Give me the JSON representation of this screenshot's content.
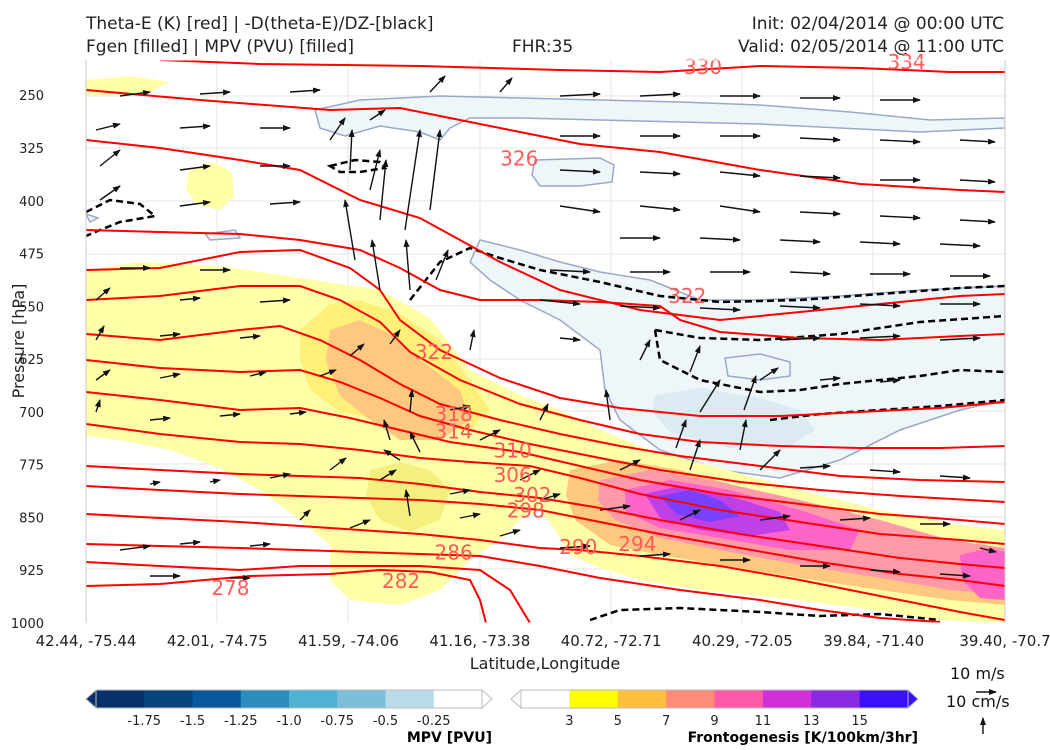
{
  "header": {
    "title_left_1": "Theta-E (K) [red] | -D(theta-E)/DZ-[black]",
    "title_left_2": "Fgen [filled] | MPV (PVU) [filled]",
    "fhr": "FHR:35",
    "init": "Init: 02/04/2014 @ 00:00 UTC",
    "valid": "Valid: 02/05/2014 @ 11:00 UTC"
  },
  "colors": {
    "theta_e": "#ff0000",
    "theta_e_label": "#ff5a5a",
    "stability": "#000000",
    "mpv_outline": "#9aa8c8"
  },
  "chart_data": {
    "type": "cross-section",
    "xlabel": "Latitude,Longitude",
    "ylabel": "Pressure [hPa]",
    "x_ticks": [
      "42.44, -75.44",
      "42.01, -74.75",
      "41.59, -74.06",
      "41.16, -73.38",
      "40.72, -72.71",
      "40.29, -72.05",
      "39.84, -71.40",
      "39.40, -70.7"
    ],
    "y_ticks": [
      250,
      325,
      400,
      475,
      550,
      625,
      700,
      775,
      850,
      925,
      1000
    ],
    "ylim": [
      1000,
      200
    ],
    "theta_e_contour_labels": [
      {
        "value": "330",
        "x": 4.7,
        "y": 210
      },
      {
        "value": "334",
        "x": 6.25,
        "y": 203
      },
      {
        "value": "326",
        "x": 3.3,
        "y": 340
      },
      {
        "value": "322",
        "x": 2.65,
        "y": 615
      },
      {
        "value": "322",
        "x": 4.58,
        "y": 535
      },
      {
        "value": "318",
        "x": 2.8,
        "y": 703
      },
      {
        "value": "314",
        "x": 2.8,
        "y": 728
      },
      {
        "value": "310",
        "x": 3.25,
        "y": 755
      },
      {
        "value": "306",
        "x": 3.25,
        "y": 790
      },
      {
        "value": "302",
        "x": 3.4,
        "y": 818
      },
      {
        "value": "298",
        "x": 3.35,
        "y": 840
      },
      {
        "value": "294",
        "x": 4.2,
        "y": 888
      },
      {
        "value": "290",
        "x": 3.75,
        "y": 892
      },
      {
        "value": "286",
        "x": 2.8,
        "y": 900
      },
      {
        "value": "282",
        "x": 2.4,
        "y": 940
      },
      {
        "value": "278",
        "x": 1.1,
        "y": 950
      }
    ],
    "mpv_colorbar": {
      "label": "MPV [PVU]",
      "ticks": [
        "-1.75",
        "-1.5",
        "-1.25",
        "-1.0",
        "-0.75",
        "-0.5",
        "-0.25"
      ],
      "colors": [
        "#08306b",
        "#08457e",
        "#08589e",
        "#2b8cbe",
        "#4eb3d3",
        "#7bc0d8",
        "#b9dbe9",
        "#ffffff"
      ]
    },
    "fgen_colorbar": {
      "label": "Frontogenesis [K/100km/3hr]",
      "ticks": [
        "3",
        "5",
        "7",
        "9",
        "11",
        "13",
        "15"
      ],
      "colors": [
        "#ffffff",
        "#ffff00",
        "#ffc040",
        "#ff8c78",
        "#ff5aaa",
        "#d030d8",
        "#8a2be2",
        "#3a10ff"
      ]
    },
    "vector_key": {
      "horizontal": "10 m/s",
      "vertical": "10 cm/s"
    }
  }
}
